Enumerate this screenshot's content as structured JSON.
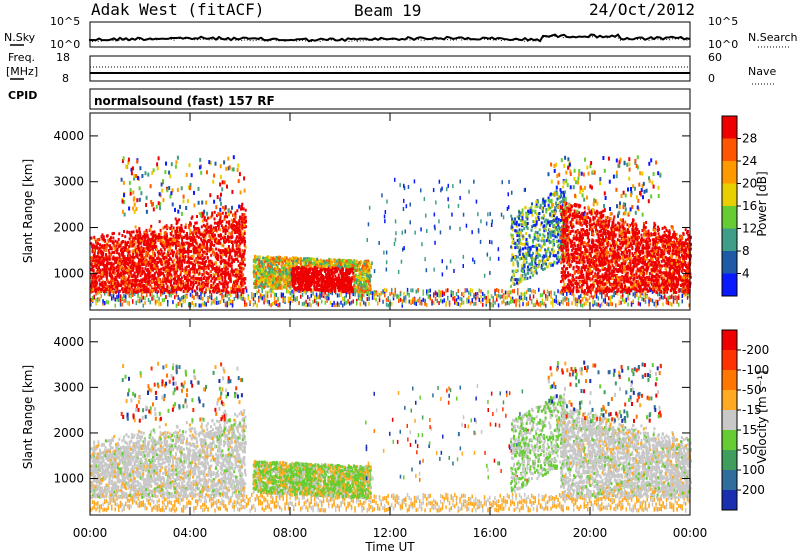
{
  "header": {
    "title": "Adak West (fitACF)",
    "beam": "Beam 19",
    "date": "24/Oct/2012"
  },
  "noise_panel": {
    "left_label": "N.Sky",
    "right_label": "N.Search",
    "left_ticks": [
      "10^5",
      "10^0"
    ],
    "right_ticks": [
      "10^5",
      "10^0"
    ]
  },
  "freq_panel": {
    "left_label_1": "Freq.",
    "left_label_2": "[MHz]",
    "right_label": "Nave",
    "left_ticks": [
      "18",
      "8"
    ],
    "right_ticks": [
      "60",
      "0"
    ],
    "cpid_label": "CPID"
  },
  "cpid_panel": {
    "mode_text": "normalsound (fast) 157 RF"
  },
  "chart_data": [
    {
      "type": "heatmap",
      "name": "power",
      "ylabel": "Slant Range [km]",
      "ylim": [
        200,
        4500
      ],
      "y_ticks": [
        "1000",
        "2000",
        "3000",
        "4000"
      ],
      "colorbar_title": "Power [dB]",
      "colorbar_ticks": [
        "4",
        "8",
        "12",
        "16",
        "20",
        "24",
        "28"
      ],
      "colorbar_colors": [
        "#0a1aff",
        "#1f5aa8",
        "#3f9e88",
        "#66cc33",
        "#e8d000",
        "#ff9900",
        "#ff5500",
        "#ee0000"
      ]
    },
    {
      "type": "heatmap",
      "name": "velocity",
      "ylabel": "Slant Range [km]",
      "ylim": [
        200,
        4500
      ],
      "y_ticks": [
        "1000",
        "2000",
        "3000",
        "4000"
      ],
      "colorbar_title": "Velocity [m s⁻¹]",
      "colorbar_ticks": [
        "200",
        "100",
        "50",
        "15",
        "-15",
        "-50",
        "-100",
        "-200"
      ],
      "colorbar_colors": [
        "#1a2fb0",
        "#2f6e9c",
        "#3f9e5e",
        "#66cc33",
        "#c8c8c8",
        "#ffaa22",
        "#ff7700",
        "#ff3300",
        "#ee0000"
      ]
    }
  ],
  "x_axis": {
    "title": "Time UT",
    "ticks": [
      "00:00",
      "04:00",
      "08:00",
      "12:00",
      "16:00",
      "20:00",
      "00:00"
    ]
  }
}
